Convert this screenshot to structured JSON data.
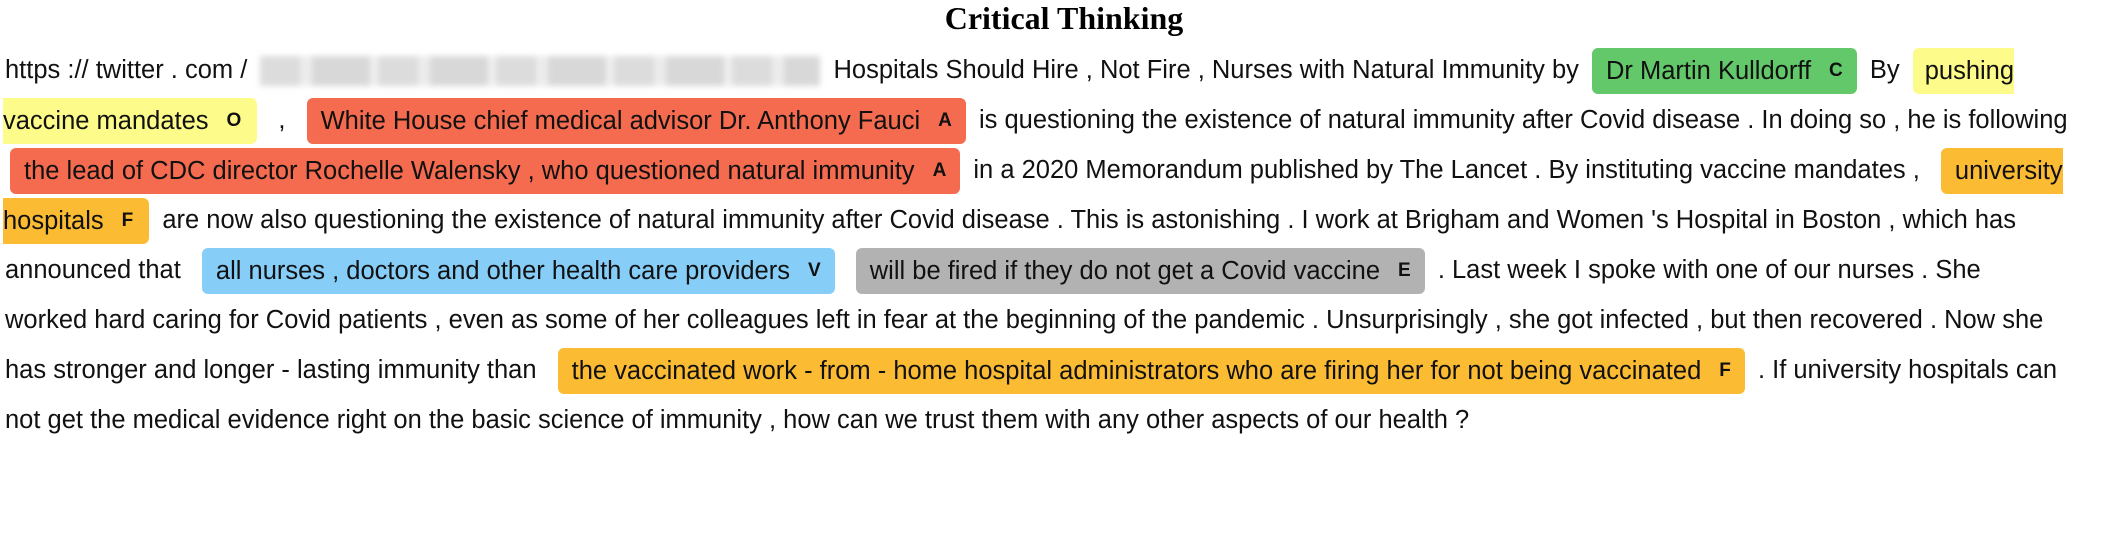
{
  "title": "Critical Thinking",
  "lines": [
    {
      "t0": "https :// twitter . com /",
      "t1": "Hospitals Should Hire , Not Fire , Nurses with Natural Immunity by",
      "s0": {
        "text": "Dr Martin Kulldorff",
        "tag": "C",
        "color": "#63c86a"
      },
      "t2": "By",
      "s1": {
        "text": "pushing",
        "color": "#fdfc8a"
      }
    },
    {
      "s0": {
        "text": "vaccine mandates",
        "tag": "O",
        "color": "#fdfc8a"
      },
      "t0": ",",
      "s1": {
        "text": "White House chief medical advisor Dr. Anthony Fauci",
        "tag": "A",
        "color": "#f46b4f"
      },
      "t1": "is questioning the existence of natural immunity after Covid disease . In doing so , he is following"
    },
    {
      "s0": {
        "text": "the lead of CDC director Rochelle Walensky , who questioned natural immunity",
        "tag": "A",
        "color": "#f46b4f"
      },
      "t0": "in a 2020 Memorandum published by The Lancet . By instituting vaccine mandates ,",
      "s1": {
        "text": "university",
        "color": "#fbbc33"
      }
    },
    {
      "s0": {
        "text": "hospitals",
        "tag": "F",
        "color": "#fbbc33"
      },
      "t0": "are now also questioning the existence of natural immunity after Covid disease . This is astonishing . I work at Brigham and Women 's Hospital in Boston , which has"
    },
    {
      "t0": "announced that",
      "s0": {
        "text": "all nurses , doctors and other health care providers",
        "tag": "V",
        "color": "#86cdf8"
      },
      "s1": {
        "text": "will be fired if they do not get a Covid vaccine",
        "tag": "E",
        "color": "#b2b2b2"
      },
      "t1": ". Last week I spoke with one of our nurses . She"
    },
    {
      "t0": "worked hard caring for Covid patients , even as some of her colleagues left in fear at the beginning of the pandemic . Unsurprisingly , she got infected , but then recovered . Now she"
    },
    {
      "t0": "has stronger and longer - lasting immunity than",
      "s0": {
        "text": "the vaccinated work - from - home hospital administrators who are firing her for not being vaccinated",
        "tag": "F",
        "color": "#fbbc33"
      },
      "t1": ". If university hospitals can"
    },
    {
      "t0": "not get the medical evidence right on the basic science of immunity , how can we trust them with any other aspects of our health ?"
    }
  ]
}
